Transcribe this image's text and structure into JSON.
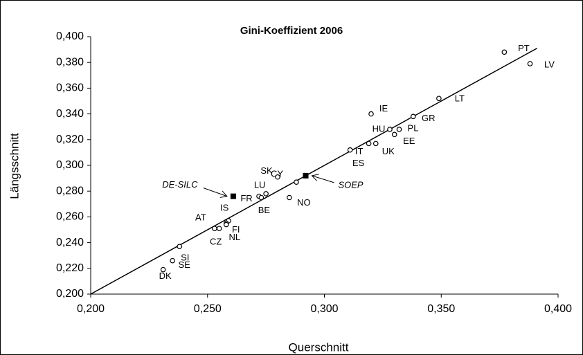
{
  "chart_data": {
    "type": "scatter",
    "title": "Gini-Koeffizient 2006",
    "x_label": "Querschnitt",
    "y_label": "Längsschnitt",
    "xlim": [
      0.2,
      0.4
    ],
    "ylim": [
      0.2,
      0.4
    ],
    "xticks": [
      {
        "value": 0.2,
        "label": "0,200"
      },
      {
        "value": 0.25,
        "label": "0,250"
      },
      {
        "value": 0.3,
        "label": "0,300"
      },
      {
        "value": 0.35,
        "label": "0,350"
      },
      {
        "value": 0.4,
        "label": "0,400"
      }
    ],
    "yticks": [
      {
        "value": 0.2,
        "label": "0,200"
      },
      {
        "value": 0.22,
        "label": "0,220"
      },
      {
        "value": 0.24,
        "label": "0,240"
      },
      {
        "value": 0.26,
        "label": "0,260"
      },
      {
        "value": 0.28,
        "label": "0,280"
      },
      {
        "value": 0.3,
        "label": "0,300"
      },
      {
        "value": 0.32,
        "label": "0,320"
      },
      {
        "value": 0.34,
        "label": "0,340"
      },
      {
        "value": 0.36,
        "label": "0,360"
      },
      {
        "value": 0.38,
        "label": "0,380"
      },
      {
        "value": 0.4,
        "label": "0,400"
      }
    ],
    "grid": false,
    "reference_line": {
      "x": [
        0.2,
        0.391
      ],
      "y": [
        0.2,
        0.391
      ]
    },
    "points": [
      {
        "label": "PT",
        "x": 0.377,
        "y": 0.388,
        "marker": "circle"
      },
      {
        "label": "LV",
        "x": 0.388,
        "y": 0.379,
        "marker": "circle"
      },
      {
        "label": "LT",
        "x": 0.349,
        "y": 0.352,
        "marker": "circle"
      },
      {
        "label": "IE",
        "x": 0.32,
        "y": 0.34,
        "marker": "circle"
      },
      {
        "label": "GR",
        "x": 0.338,
        "y": 0.338,
        "marker": "circle"
      },
      {
        "label": "HU",
        "x": 0.328,
        "y": 0.328,
        "marker": "circle"
      },
      {
        "label": "PL",
        "x": 0.332,
        "y": 0.328,
        "marker": "circle"
      },
      {
        "label": "EE",
        "x": 0.33,
        "y": 0.324,
        "marker": "circle"
      },
      {
        "label": "UK",
        "x": 0.322,
        "y": 0.317,
        "marker": "circle"
      },
      {
        "label": "IT",
        "x": 0.319,
        "y": 0.317,
        "marker": "circle"
      },
      {
        "label": "ES",
        "x": 0.311,
        "y": 0.312,
        "marker": "circle"
      },
      {
        "label": "CY",
        "x": 0.288,
        "y": 0.287,
        "marker": "circle"
      },
      {
        "label": "SOEP",
        "x": 0.292,
        "y": 0.292,
        "marker": "square"
      },
      {
        "label": "SK",
        "x": 0.28,
        "y": 0.291,
        "marker": "circle"
      },
      {
        "label": "DE-SILC",
        "x": 0.261,
        "y": 0.276,
        "marker": "square"
      },
      {
        "label": "LU",
        "x": 0.275,
        "y": 0.278,
        "marker": "circle"
      },
      {
        "label": "FR",
        "x": 0.272,
        "y": 0.276,
        "marker": "circle"
      },
      {
        "label": "BE",
        "x": 0.273,
        "y": 0.275,
        "marker": "circle"
      },
      {
        "label": "NO",
        "x": 0.285,
        "y": 0.275,
        "marker": "circle"
      },
      {
        "label": "AT",
        "x": 0.253,
        "y": 0.251,
        "marker": "circle"
      },
      {
        "label": "CZ",
        "x": 0.255,
        "y": 0.251,
        "marker": "circle"
      },
      {
        "label": "IS",
        "x": 0.259,
        "y": 0.257,
        "marker": "circle"
      },
      {
        "label": "FI",
        "x": 0.258,
        "y": 0.255,
        "marker": "circle"
      },
      {
        "label": "NL",
        "x": 0.258,
        "y": 0.254,
        "marker": "circle"
      },
      {
        "label": "SI",
        "x": 0.238,
        "y": 0.237,
        "marker": "circle"
      },
      {
        "label": "SE",
        "x": 0.235,
        "y": 0.226,
        "marker": "circle"
      },
      {
        "label": "DK",
        "x": 0.231,
        "y": 0.219,
        "marker": "circle"
      }
    ]
  }
}
